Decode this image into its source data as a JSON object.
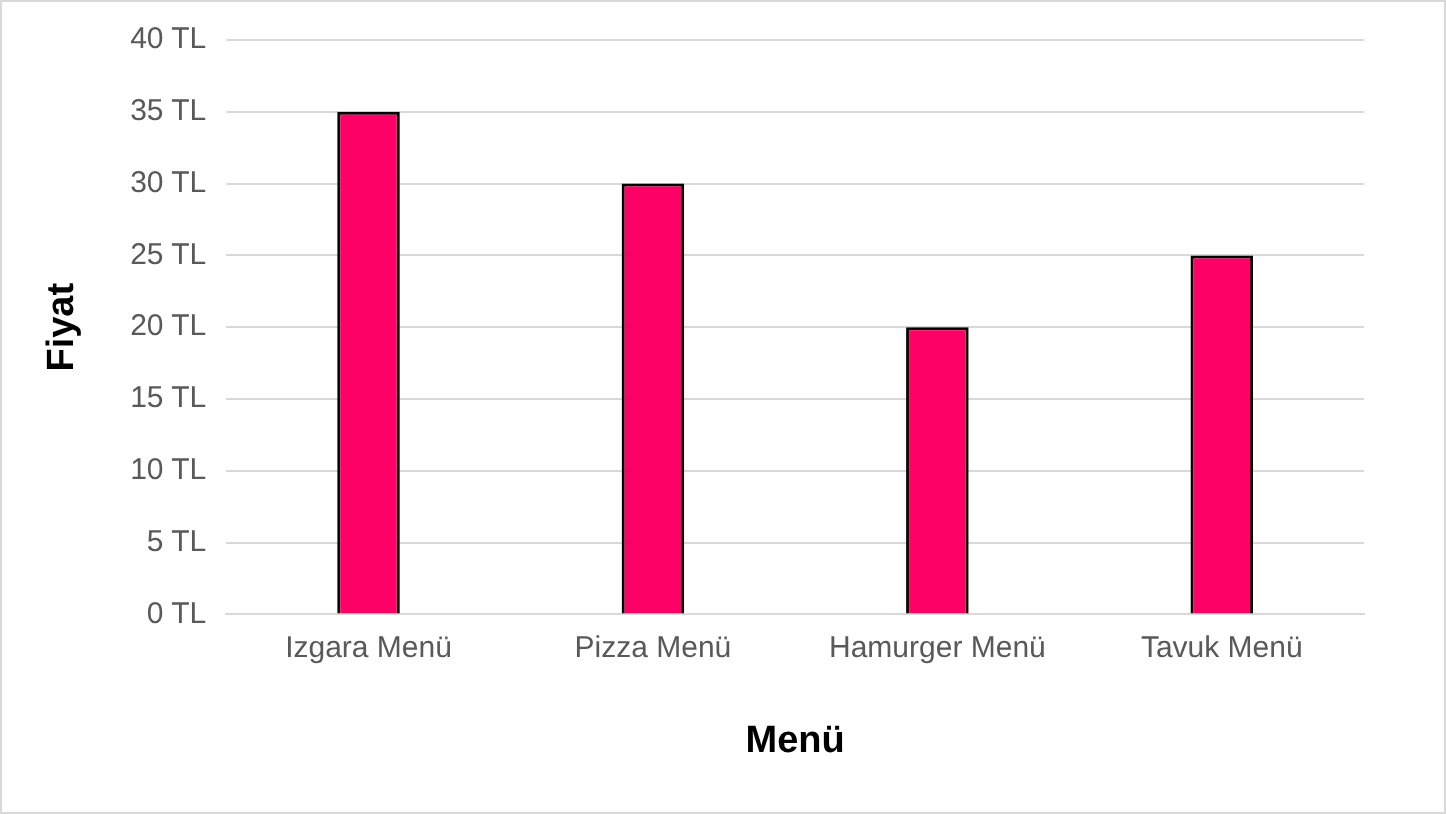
{
  "chart_data": {
    "type": "bar",
    "xlabel": "Menü",
    "ylabel": "Fiyat",
    "categories": [
      "Izgara Menü",
      "Pizza Menü",
      "Hamurger Menü",
      "Tavuk Menü"
    ],
    "values": [
      35,
      30,
      20,
      25
    ],
    "color": "#ff0066",
    "ylim": [
      0,
      40
    ],
    "yticks": [
      {
        "value": 0,
        "label": "0 TL"
      },
      {
        "value": 5,
        "label": "5 TL"
      },
      {
        "value": 10,
        "label": "10 TL"
      },
      {
        "value": 15,
        "label": "15 TL"
      },
      {
        "value": 20,
        "label": "20 TL"
      },
      {
        "value": 25,
        "label": "25 TL"
      },
      {
        "value": 30,
        "label": "30 TL"
      },
      {
        "value": 35,
        "label": "35 TL"
      },
      {
        "value": 40,
        "label": "40 TL"
      }
    ],
    "grid": "y",
    "legend": false
  }
}
